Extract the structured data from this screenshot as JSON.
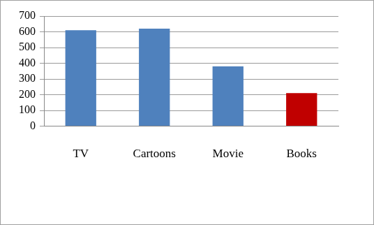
{
  "chart_data": {
    "type": "bar",
    "categories": [
      "TV",
      "Cartoons",
      "Movie",
      "Books"
    ],
    "values": [
      610,
      620,
      380,
      210
    ],
    "colors": [
      "#4f81bd",
      "#4f81bd",
      "#4f81bd",
      "#c00000"
    ],
    "ylim": [
      0,
      700
    ],
    "yticks": [
      0,
      100,
      200,
      300,
      400,
      500,
      600,
      700
    ],
    "grid": true
  }
}
